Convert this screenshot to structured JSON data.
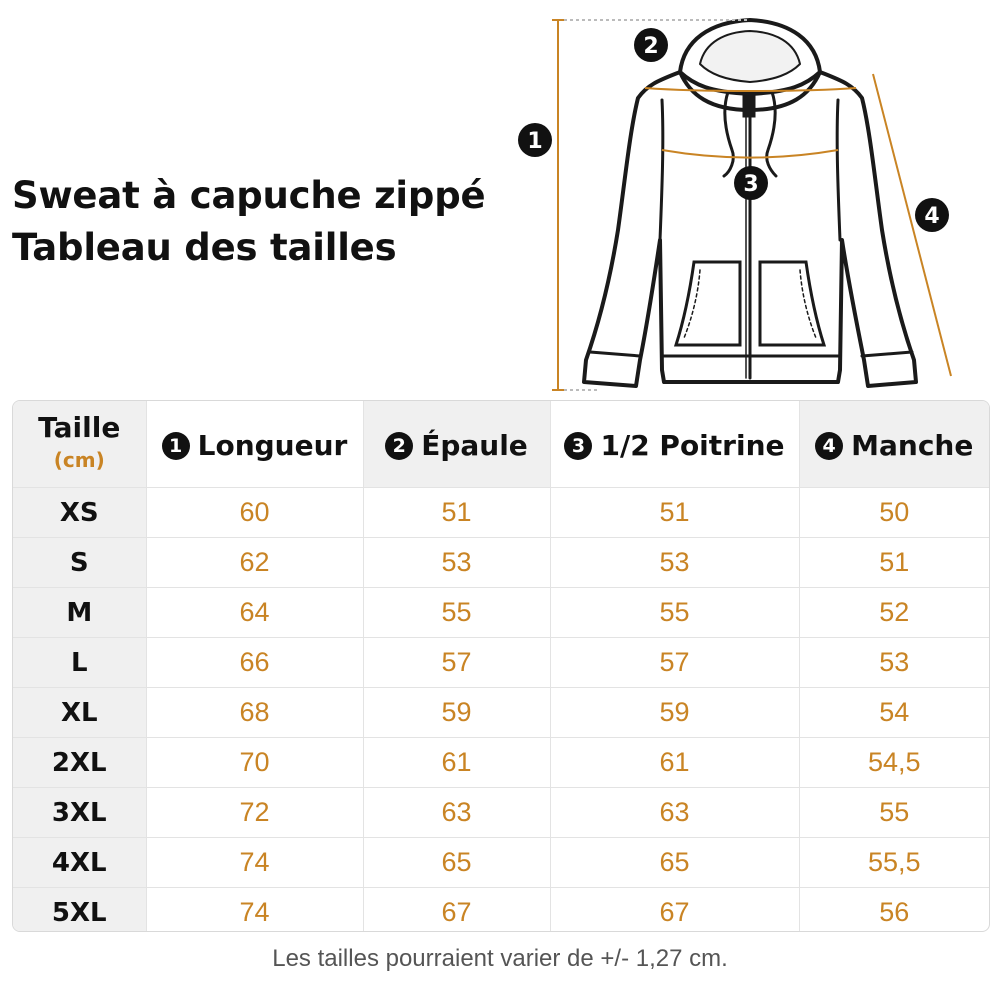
{
  "title": {
    "line1": "Sweat à capuche zippé",
    "line2": "Tableau des tailles"
  },
  "diagram": {
    "markers": [
      "1",
      "2",
      "3",
      "4"
    ],
    "accent_color": "#c98424"
  },
  "table": {
    "size_header": "Taille",
    "size_unit": "(cm)",
    "columns": [
      {
        "num": "1",
        "label": "Longueur"
      },
      {
        "num": "2",
        "label": "Épaule"
      },
      {
        "num": "3",
        "label": "1/2 Poitrine"
      },
      {
        "num": "4",
        "label": "Manche"
      }
    ],
    "rows": [
      {
        "size": "XS",
        "values": [
          "60",
          "51",
          "51",
          "50"
        ]
      },
      {
        "size": "S",
        "values": [
          "62",
          "53",
          "53",
          "51"
        ]
      },
      {
        "size": "M",
        "values": [
          "64",
          "55",
          "55",
          "52"
        ]
      },
      {
        "size": "L",
        "values": [
          "66",
          "57",
          "57",
          "53"
        ]
      },
      {
        "size": "XL",
        "values": [
          "68",
          "59",
          "59",
          "54"
        ]
      },
      {
        "size": "2XL",
        "values": [
          "70",
          "61",
          "61",
          "54,5"
        ]
      },
      {
        "size": "3XL",
        "values": [
          "72",
          "63",
          "63",
          "55"
        ]
      },
      {
        "size": "4XL",
        "values": [
          "74",
          "65",
          "65",
          "55,5"
        ]
      },
      {
        "size": "5XL",
        "values": [
          "74",
          "67",
          "67",
          "56"
        ]
      }
    ]
  },
  "footnote": "Les tailles pourraient varier de +/- 1,27 cm."
}
